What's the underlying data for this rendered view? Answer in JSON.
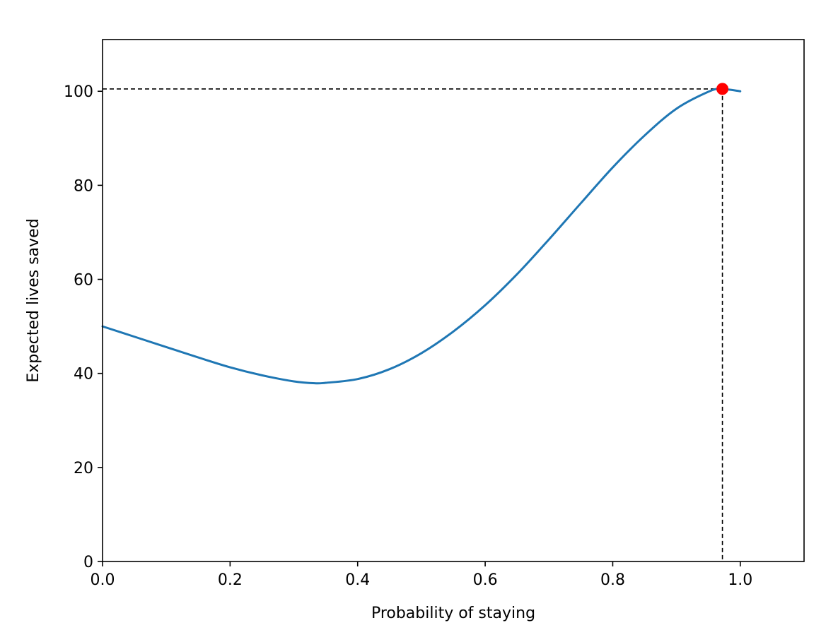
{
  "chart_data": {
    "type": "line",
    "title": "",
    "xlabel": "Probability of staying",
    "ylabel": "Expected lives saved",
    "xlim": [
      0.0,
      1.1
    ],
    "ylim": [
      0,
      111
    ],
    "xticks": [
      0.0,
      0.2,
      0.4,
      0.6,
      0.8,
      1.0
    ],
    "xtick_labels": [
      "0.0",
      "0.2",
      "0.4",
      "0.6",
      "0.8",
      "1.0"
    ],
    "yticks": [
      0,
      20,
      40,
      60,
      80,
      100
    ],
    "ytick_labels": [
      "0",
      "20",
      "40",
      "60",
      "80",
      "100"
    ],
    "grid": false,
    "legend": "none",
    "series": [
      {
        "color": "#1f77b4",
        "x": [
          0.0,
          0.05,
          0.1,
          0.15,
          0.2,
          0.25,
          0.3,
          0.333,
          0.35,
          0.4,
          0.45,
          0.5,
          0.55,
          0.6,
          0.65,
          0.7,
          0.75,
          0.8,
          0.85,
          0.9,
          0.95,
          0.97,
          1.0
        ],
        "y": [
          50.0,
          47.8,
          45.6,
          43.4,
          41.3,
          39.6,
          38.3,
          37.9,
          38.0,
          38.8,
          40.9,
          44.3,
          48.9,
          54.5,
          61.1,
          68.5,
          76.2,
          83.8,
          90.6,
          96.3,
          99.9,
          100.5,
          100.0
        ]
      }
    ],
    "max_point": {
      "x": 0.972,
      "y": 100.5,
      "color": "#ff0000"
    },
    "reference_lines": {
      "style": "dashed",
      "color": "#000000"
    }
  }
}
